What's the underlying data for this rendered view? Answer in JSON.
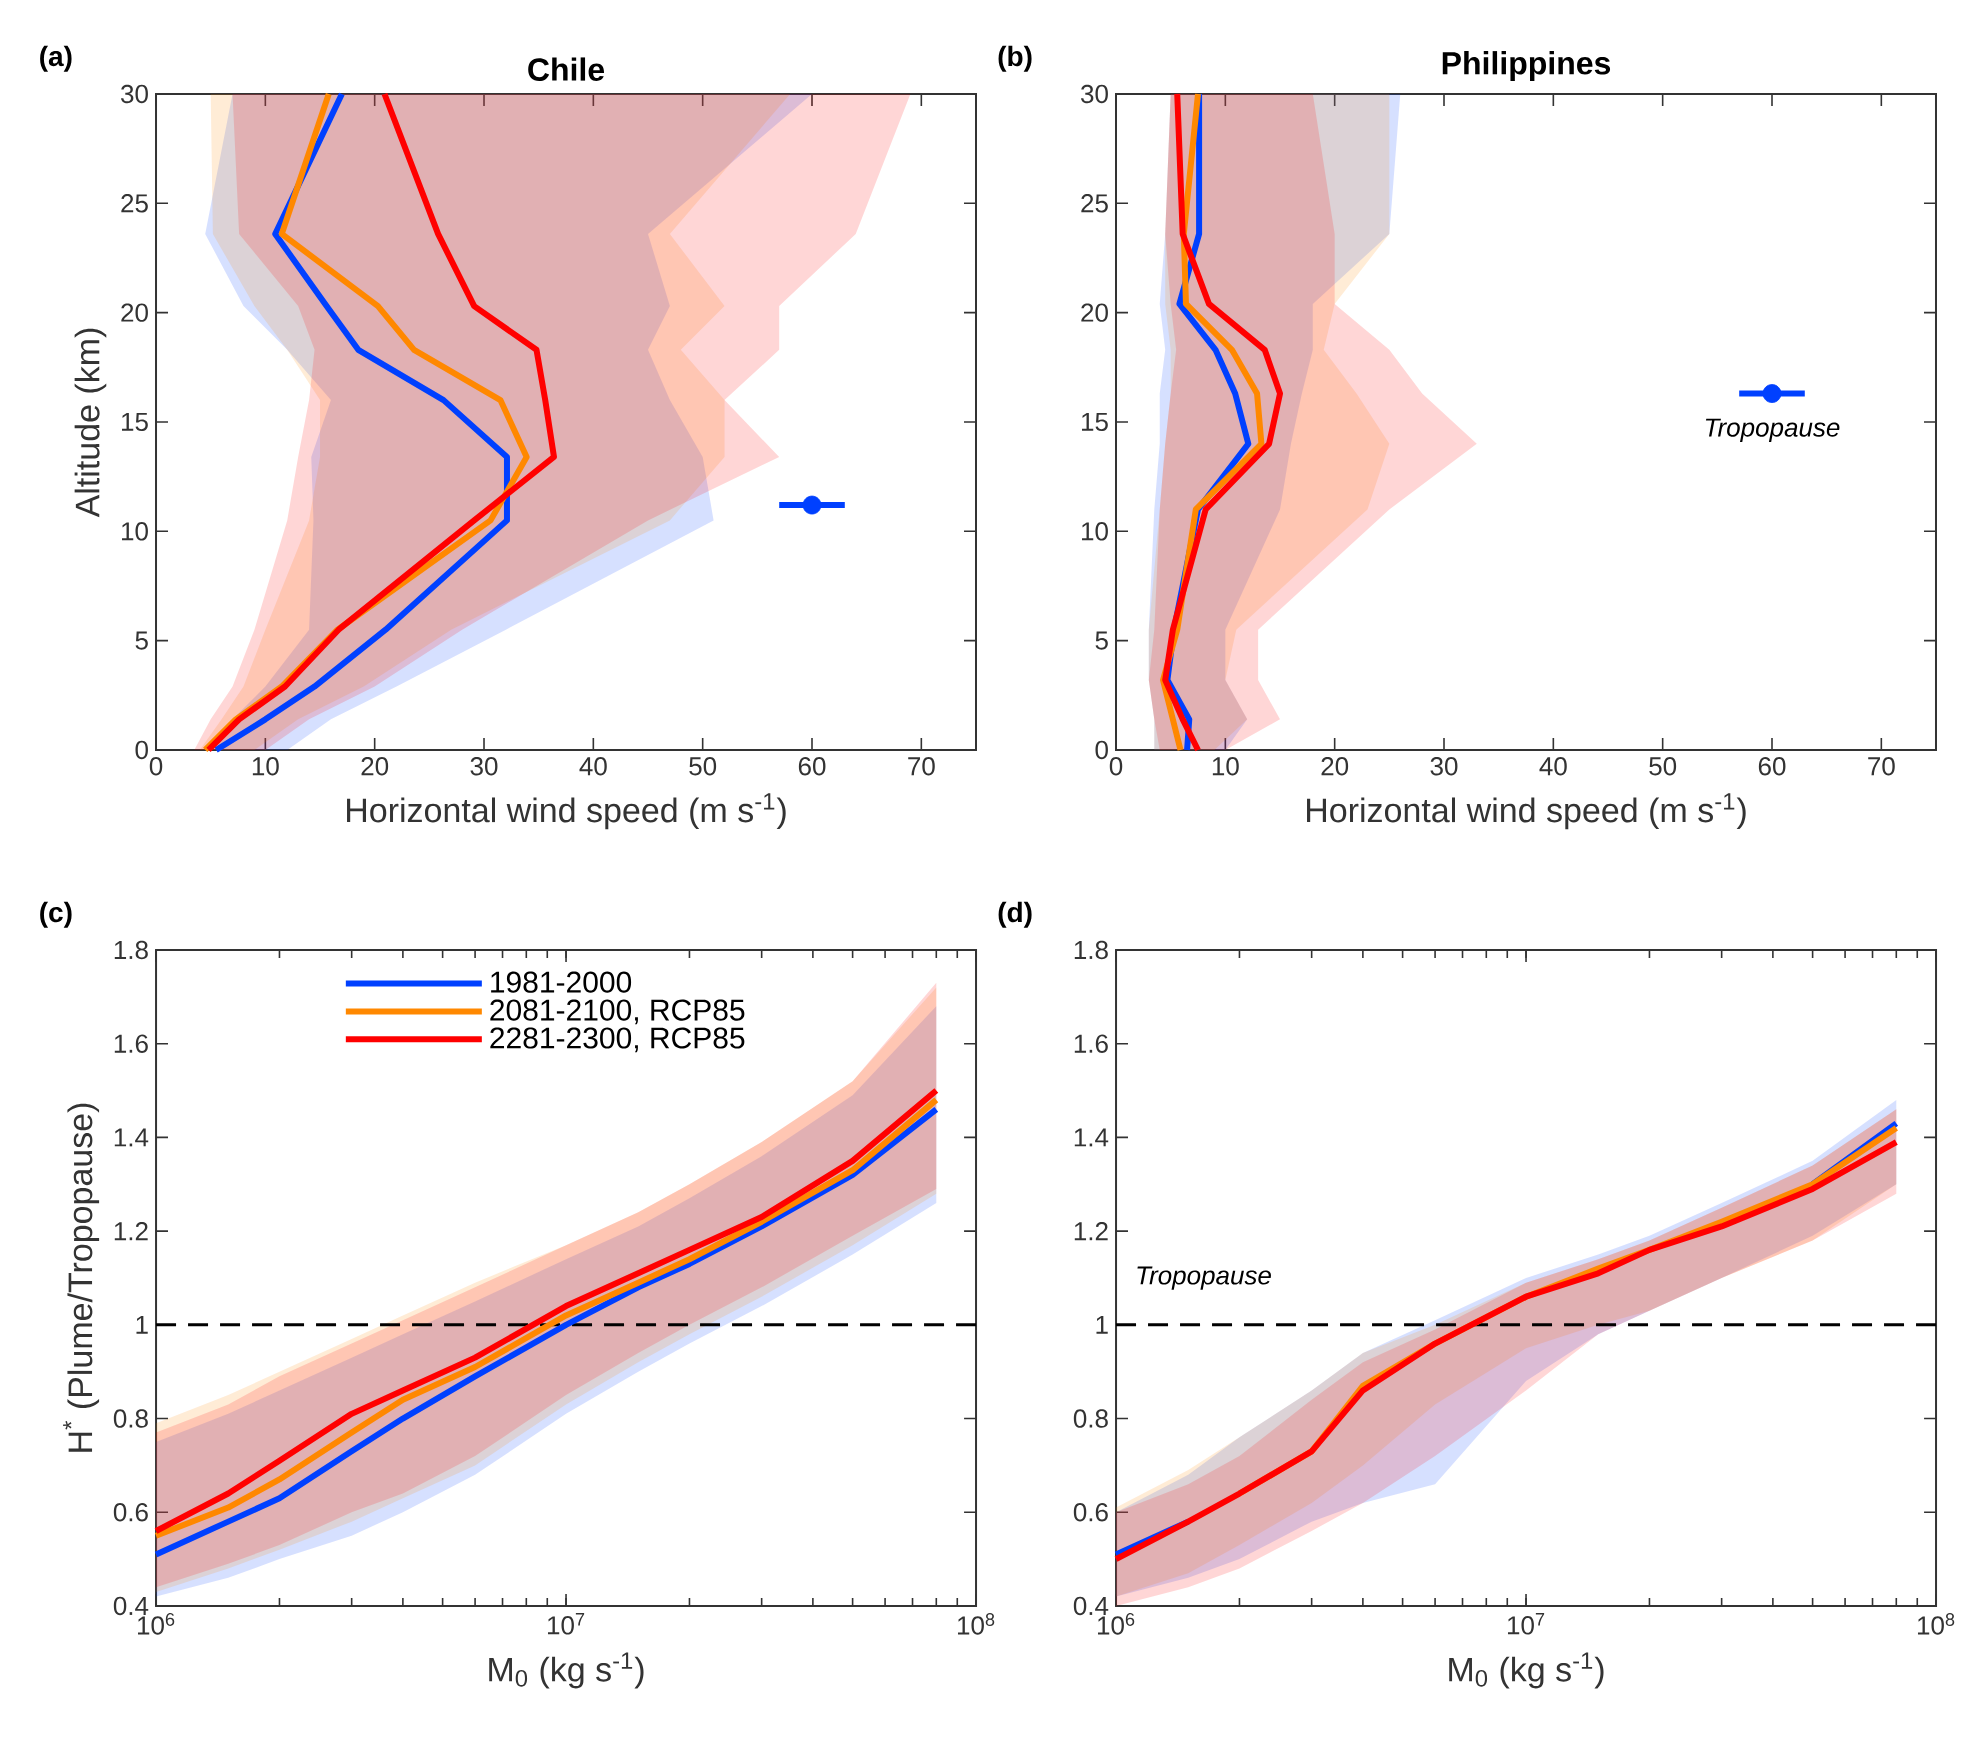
{
  "chart_data": [
    {
      "type": "line",
      "orientation": "horizontal",
      "title": "Chile",
      "xlabel": "Horizontal wind speed (m s$^{-1}$)",
      "ylabel": "Altitude (km)",
      "xlim": [
        0,
        75
      ],
      "ylim": [
        0,
        30
      ],
      "xticks": [
        0,
        10,
        20,
        30,
        40,
        50,
        60,
        70
      ],
      "yticks": [
        0,
        5,
        10,
        15,
        20,
        25,
        30
      ],
      "annotations": [
        "(a)"
      ],
      "series": [
        {
          "color": "#0040ff",
          "x": [
            0,
            1.4,
            2.9,
            5.5,
            10.5,
            13.4,
            16,
            18.3,
            20.3,
            23.6,
            30
          ],
          "values": [
            5.5,
            10,
            14.5,
            21,
            32.1,
            32.1,
            26.3,
            18.5,
            15.6,
            10.9,
            17
          ],
          "lower": [
            4.5,
            7,
            10,
            14,
            14.4,
            14.2,
            16,
            12,
            8,
            4.5,
            7
          ],
          "upper": [
            12,
            16,
            22,
            32,
            51,
            50,
            47,
            45,
            47,
            45,
            60
          ]
        },
        {
          "color": "#ff8800",
          "x": [
            0,
            1.4,
            2.9,
            5.5,
            10.5,
            13.4,
            16,
            18.3,
            20.3,
            23.6,
            30
          ],
          "values": [
            4.5,
            7.3,
            11.5,
            16.6,
            30.6,
            33.9,
            31.5,
            23.6,
            20.3,
            11.5,
            15.8
          ],
          "lower": [
            4,
            6,
            8,
            10,
            14,
            15,
            15,
            12,
            9,
            5.2,
            5
          ],
          "upper": [
            9,
            13,
            19,
            27,
            47,
            52,
            52,
            48,
            52,
            47,
            58
          ]
        },
        {
          "color": "#ff0000",
          "x": [
            0,
            1.4,
            2.9,
            5.5,
            10.5,
            13.4,
            16,
            18.3,
            20.3,
            23.6,
            30
          ],
          "values": [
            4.8,
            7.6,
            11.8,
            16.7,
            29.1,
            36.4,
            35.6,
            34.8,
            29.1,
            25.8,
            20.9
          ],
          "lower": [
            3.5,
            5,
            7,
            9,
            12,
            13,
            14,
            14.5,
            13,
            7.6,
            7
          ],
          "upper": [
            10,
            14,
            20,
            28,
            45,
            57,
            52,
            57,
            57,
            64,
            69
          ]
        },
        {
          "type": "scatter",
          "color": "#0040ff",
          "x": [
            11.2
          ],
          "values": [
            60
          ],
          "errors": [
            3
          ],
          "marker": "circle"
        }
      ]
    },
    {
      "type": "line",
      "orientation": "horizontal",
      "title": "Philippines",
      "xlabel": "Horizontal wind speed (m s$^{-1}$)",
      "xlim": [
        0,
        75
      ],
      "ylim": [
        0,
        30
      ],
      "xticks": [
        0,
        10,
        20,
        30,
        40,
        50,
        60,
        70
      ],
      "yticks": [
        0,
        5,
        10,
        15,
        20,
        25,
        30
      ],
      "annotations": [
        "(b)",
        {
          "text": "Tropopause",
          "x": 60,
          "y": 16.3
        }
      ],
      "series": [
        {
          "color": "#0040ff",
          "x": [
            0,
            1.4,
            3.2,
            5.5,
            11,
            14,
            16.3,
            18.3,
            20.4,
            23.6,
            30
          ],
          "values": [
            6.5,
            6.7,
            4.7,
            5.3,
            7.5,
            12.1,
            10.9,
            9.1,
            5.8,
            7.6,
            7.6
          ],
          "lower": [
            3.5,
            3.5,
            3,
            3,
            3.5,
            4,
            4,
            4.5,
            4,
            4.5,
            5
          ],
          "upper": [
            10,
            12,
            10,
            10,
            15,
            16,
            17,
            18,
            18,
            25,
            26
          ]
        },
        {
          "color": "#ff8800",
          "x": [
            0,
            1.4,
            3.2,
            5.5,
            11,
            14,
            16.3,
            18.3,
            20.4,
            23.6,
            30
          ],
          "values": [
            5.9,
            5.2,
            4.3,
            5.6,
            7.3,
            13.3,
            12.9,
            10.6,
            6.4,
            6.2,
            7.5
          ],
          "lower": [
            3.5,
            3.5,
            3,
            3,
            4,
            4.5,
            5,
            5,
            4.5,
            4.5,
            5
          ],
          "upper": [
            9,
            12,
            10,
            11,
            23,
            25,
            22,
            19,
            20,
            25,
            25
          ]
        },
        {
          "color": "#ff0000",
          "x": [
            0,
            1.4,
            3.2,
            5.5,
            11,
            14,
            16.3,
            18.3,
            20.4,
            23.6,
            30
          ],
          "values": [
            7.5,
            6.1,
            4.5,
            5.2,
            8.2,
            14,
            15,
            13.6,
            8.5,
            6.1,
            5.6
          ],
          "lower": [
            4,
            3.5,
            3,
            3.5,
            4,
            4.5,
            5,
            5.5,
            5,
            4.5,
            5
          ],
          "upper": [
            10,
            15,
            13,
            13,
            25,
            33,
            28,
            25,
            20,
            20,
            18
          ]
        },
        {
          "type": "scatter",
          "color": "#0040ff",
          "x": [
            16.3
          ],
          "values": [
            60
          ],
          "errors": [
            3
          ],
          "marker": "circle"
        }
      ]
    },
    {
      "type": "line",
      "xlabel": "M$_{0}$ (kg s$^{-1}$)",
      "ylabel": "H$^{*}$ (Plume/Tropopause)",
      "log": "x",
      "legend": "top left",
      "xlim": [
        1000000,
        100000000
      ],
      "ylim": [
        0.4,
        1.8
      ],
      "xticks": [
        {
          "value": 1000000,
          "label": "10$^{6}$"
        },
        {
          "value": 10000000,
          "label": "10$^{7}$"
        },
        {
          "value": 100000000,
          "label": "10$^{8}$"
        }
      ],
      "yticks": [
        0.4,
        0.6,
        0.8,
        1,
        1.2,
        1.4,
        1.6,
        1.8
      ],
      "annotations": [
        "(c)"
      ],
      "ref_lines": [
        {
          "axis": "y",
          "value": 1,
          "line_style": "dashed",
          "color": "#000000"
        }
      ],
      "x": [
        1000000,
        1500000,
        2000000,
        3000000,
        4000000,
        6000000,
        10000000,
        15000000,
        20000000,
        30000000,
        50000000,
        80000000
      ],
      "series": [
        {
          "name": "1981-2000",
          "color": "#0040ff",
          "values": [
            0.51,
            0.58,
            0.63,
            0.73,
            0.8,
            0.89,
            1,
            1.08,
            1.13,
            1.21,
            1.32,
            1.46
          ],
          "lower": [
            0.42,
            0.46,
            0.5,
            0.55,
            0.6,
            0.68,
            0.81,
            0.9,
            0.96,
            1.04,
            1.15,
            1.26
          ],
          "upper": [
            0.75,
            0.81,
            0.86,
            0.93,
            0.98,
            1.05,
            1.14,
            1.21,
            1.27,
            1.36,
            1.49,
            1.68
          ]
        },
        {
          "name": "2081-2100, RCP85",
          "color": "#ff8800",
          "values": [
            0.55,
            0.61,
            0.67,
            0.77,
            0.84,
            0.91,
            1.02,
            1.09,
            1.14,
            1.22,
            1.33,
            1.48
          ],
          "lower": [
            0.43,
            0.48,
            0.52,
            0.58,
            0.63,
            0.7,
            0.83,
            0.92,
            0.98,
            1.06,
            1.17,
            1.28
          ],
          "upper": [
            0.79,
            0.85,
            0.9,
            0.97,
            1.02,
            1.09,
            1.17,
            1.24,
            1.3,
            1.39,
            1.52,
            1.72
          ]
        },
        {
          "name": "2281-2300, RCP85",
          "color": "#ff0000",
          "values": [
            0.56,
            0.64,
            0.71,
            0.81,
            0.86,
            0.93,
            1.04,
            1.11,
            1.16,
            1.23,
            1.35,
            1.5
          ],
          "lower": [
            0.44,
            0.49,
            0.53,
            0.6,
            0.64,
            0.72,
            0.85,
            0.94,
            1,
            1.08,
            1.19,
            1.29
          ],
          "upper": [
            0.77,
            0.83,
            0.89,
            0.96,
            1.01,
            1.08,
            1.17,
            1.24,
            1.3,
            1.39,
            1.52,
            1.73
          ]
        }
      ]
    },
    {
      "type": "line",
      "xlabel": "M$_{0}$ (kg s$^{-1}$)",
      "log": "x",
      "xlim": [
        1000000,
        100000000
      ],
      "ylim": [
        0.4,
        1.8
      ],
      "xticks": [
        {
          "value": 1000000,
          "label": "10$^{6}$"
        },
        {
          "value": 10000000,
          "label": "10$^{7}$"
        },
        {
          "value": 100000000,
          "label": "10$^{8}$"
        }
      ],
      "yticks": [
        0.4,
        0.6,
        0.8,
        1,
        1.2,
        1.4,
        1.6,
        1.8
      ],
      "annotations": [
        "(d)"
      ],
      "ref_lines": [
        {
          "axis": "y",
          "value": 1,
          "label": "Tropopause",
          "line_style": "dashed",
          "color": "#000000"
        }
      ],
      "x": [
        1000000,
        1500000,
        2000000,
        3000000,
        4000000,
        6000000,
        10000000,
        15000000,
        20000000,
        30000000,
        50000000,
        80000000
      ],
      "series": [
        {
          "color": "#0040ff",
          "values": [
            0.51,
            0.58,
            null,
            null,
            null,
            null,
            null,
            null,
            null,
            null,
            1.3,
            1.43
          ],
          "lower": [
            0.42,
            0.46,
            0.5,
            0.58,
            0.62,
            0.66,
            0.88,
            0.98,
            1.03,
            1.1,
            1.19,
            1.3
          ],
          "upper": [
            0.6,
            0.68,
            0.76,
            0.86,
            0.94,
            1.01,
            1.1,
            1.15,
            1.19,
            1.26,
            1.35,
            1.48
          ]
        },
        {
          "color": "#ff8800",
          "values": [
            null,
            null,
            0.64,
            0.73,
            0.87,
            0.96,
            1.06,
            1.12,
            1.16,
            1.22,
            1.3,
            1.42
          ],
          "lower": [
            0.42,
            0.47,
            0.53,
            0.62,
            0.7,
            0.83,
            0.95,
            1,
            1.03,
            1.1,
            1.18,
            1.3
          ],
          "upper": [
            0.61,
            0.69,
            0.76,
            0.86,
            0.94,
            1,
            1.09,
            1.14,
            1.18,
            1.25,
            1.34,
            1.46
          ]
        },
        {
          "color": "#ff0000",
          "values": [
            0.5,
            0.58,
            0.64,
            0.73,
            0.86,
            0.96,
            1.06,
            1.11,
            1.16,
            1.21,
            1.29,
            1.39
          ],
          "lower": [
            0.4,
            0.44,
            0.48,
            0.56,
            0.62,
            0.72,
            0.86,
            0.98,
            1.03,
            1.1,
            1.18,
            1.28
          ],
          "upper": [
            0.6,
            0.66,
            0.72,
            0.84,
            0.92,
            0.99,
            1.09,
            1.14,
            1.18,
            1.25,
            1.34,
            1.46
          ]
        }
      ]
    }
  ]
}
